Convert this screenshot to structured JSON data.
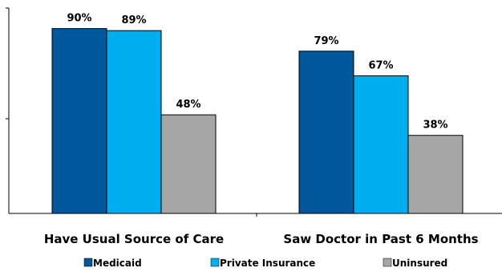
{
  "chart_data": {
    "type": "bar",
    "title": "",
    "xlabel": "",
    "ylabel": "",
    "ylim": [
      0,
      100
    ],
    "grid": false,
    "legend_position": "bottom",
    "categories": [
      "Have Usual Source of Care",
      "Saw Doctor in Past 6 Months"
    ],
    "series": [
      {
        "name": "Medicaid",
        "color": "#00579B",
        "values": [
          90,
          79
        ],
        "labels": [
          "90%",
          "79%"
        ]
      },
      {
        "name": "Private Insurance",
        "color": "#00AEEF",
        "values": [
          89,
          67
        ],
        "labels": [
          "89%",
          "67%"
        ]
      },
      {
        "name": "Uninsured",
        "color": "#A6A6A6",
        "values": [
          48,
          38
        ],
        "labels": [
          "48%",
          "38%"
        ]
      }
    ]
  }
}
